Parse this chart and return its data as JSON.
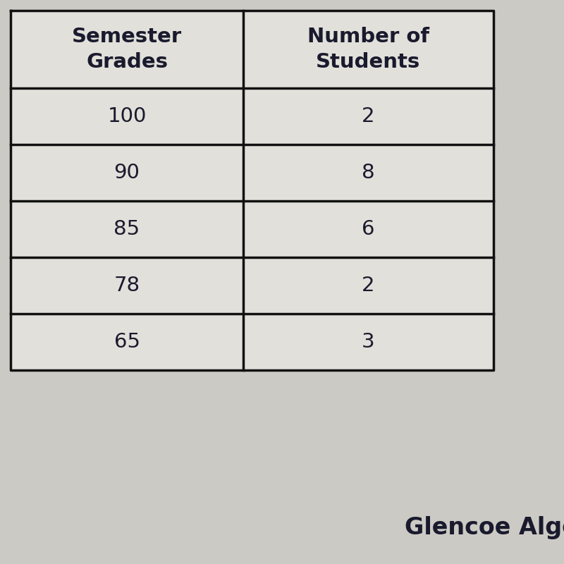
{
  "col1_header": "Semester\nGrades",
  "col2_header": "Number of\nStudents",
  "rows": [
    [
      "100",
      "2"
    ],
    [
      "90",
      "8"
    ],
    [
      "85",
      "6"
    ],
    [
      "78",
      "2"
    ],
    [
      "65",
      "3"
    ]
  ],
  "watermark": "Glencoe Alge",
  "bg_color": "#cccac4",
  "table_bg": "#e2e0da",
  "line_color": "#111111",
  "text_color": "#1a1a2e",
  "header_fontsize": 21,
  "cell_fontsize": 21,
  "watermark_fontsize": 24
}
